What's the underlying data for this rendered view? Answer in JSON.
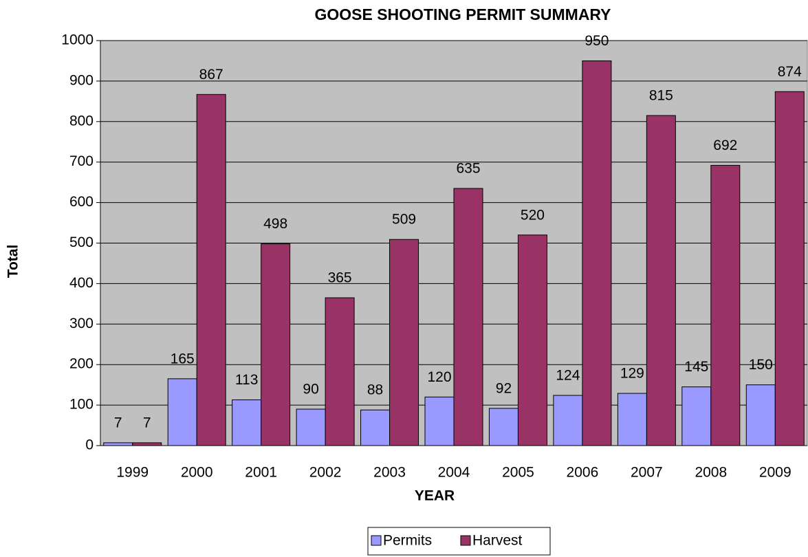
{
  "chart_data": {
    "type": "bar",
    "title": "GOOSE SHOOTING PERMIT SUMMARY",
    "x_label": "YEAR",
    "y_label": "Total",
    "categories": [
      "1999",
      "2000",
      "2001",
      "2002",
      "2003",
      "2004",
      "2005",
      "2006",
      "2007",
      "2008",
      "2009"
    ],
    "series": [
      {
        "name": "Permits",
        "color": "#9999ff",
        "values": [
          7,
          165,
          113,
          90,
          88,
          120,
          92,
          124,
          129,
          145,
          150
        ]
      },
      {
        "name": "Harvest",
        "color": "#993366",
        "values": [
          7,
          867,
          498,
          365,
          509,
          635,
          520,
          950,
          815,
          692,
          874
        ]
      }
    ],
    "ylim": [
      0,
      1000
    ],
    "yticks": [
      0,
      100,
      200,
      300,
      400,
      500,
      600,
      700,
      800,
      900,
      1000
    ],
    "grid": true,
    "legend": "bottom"
  }
}
